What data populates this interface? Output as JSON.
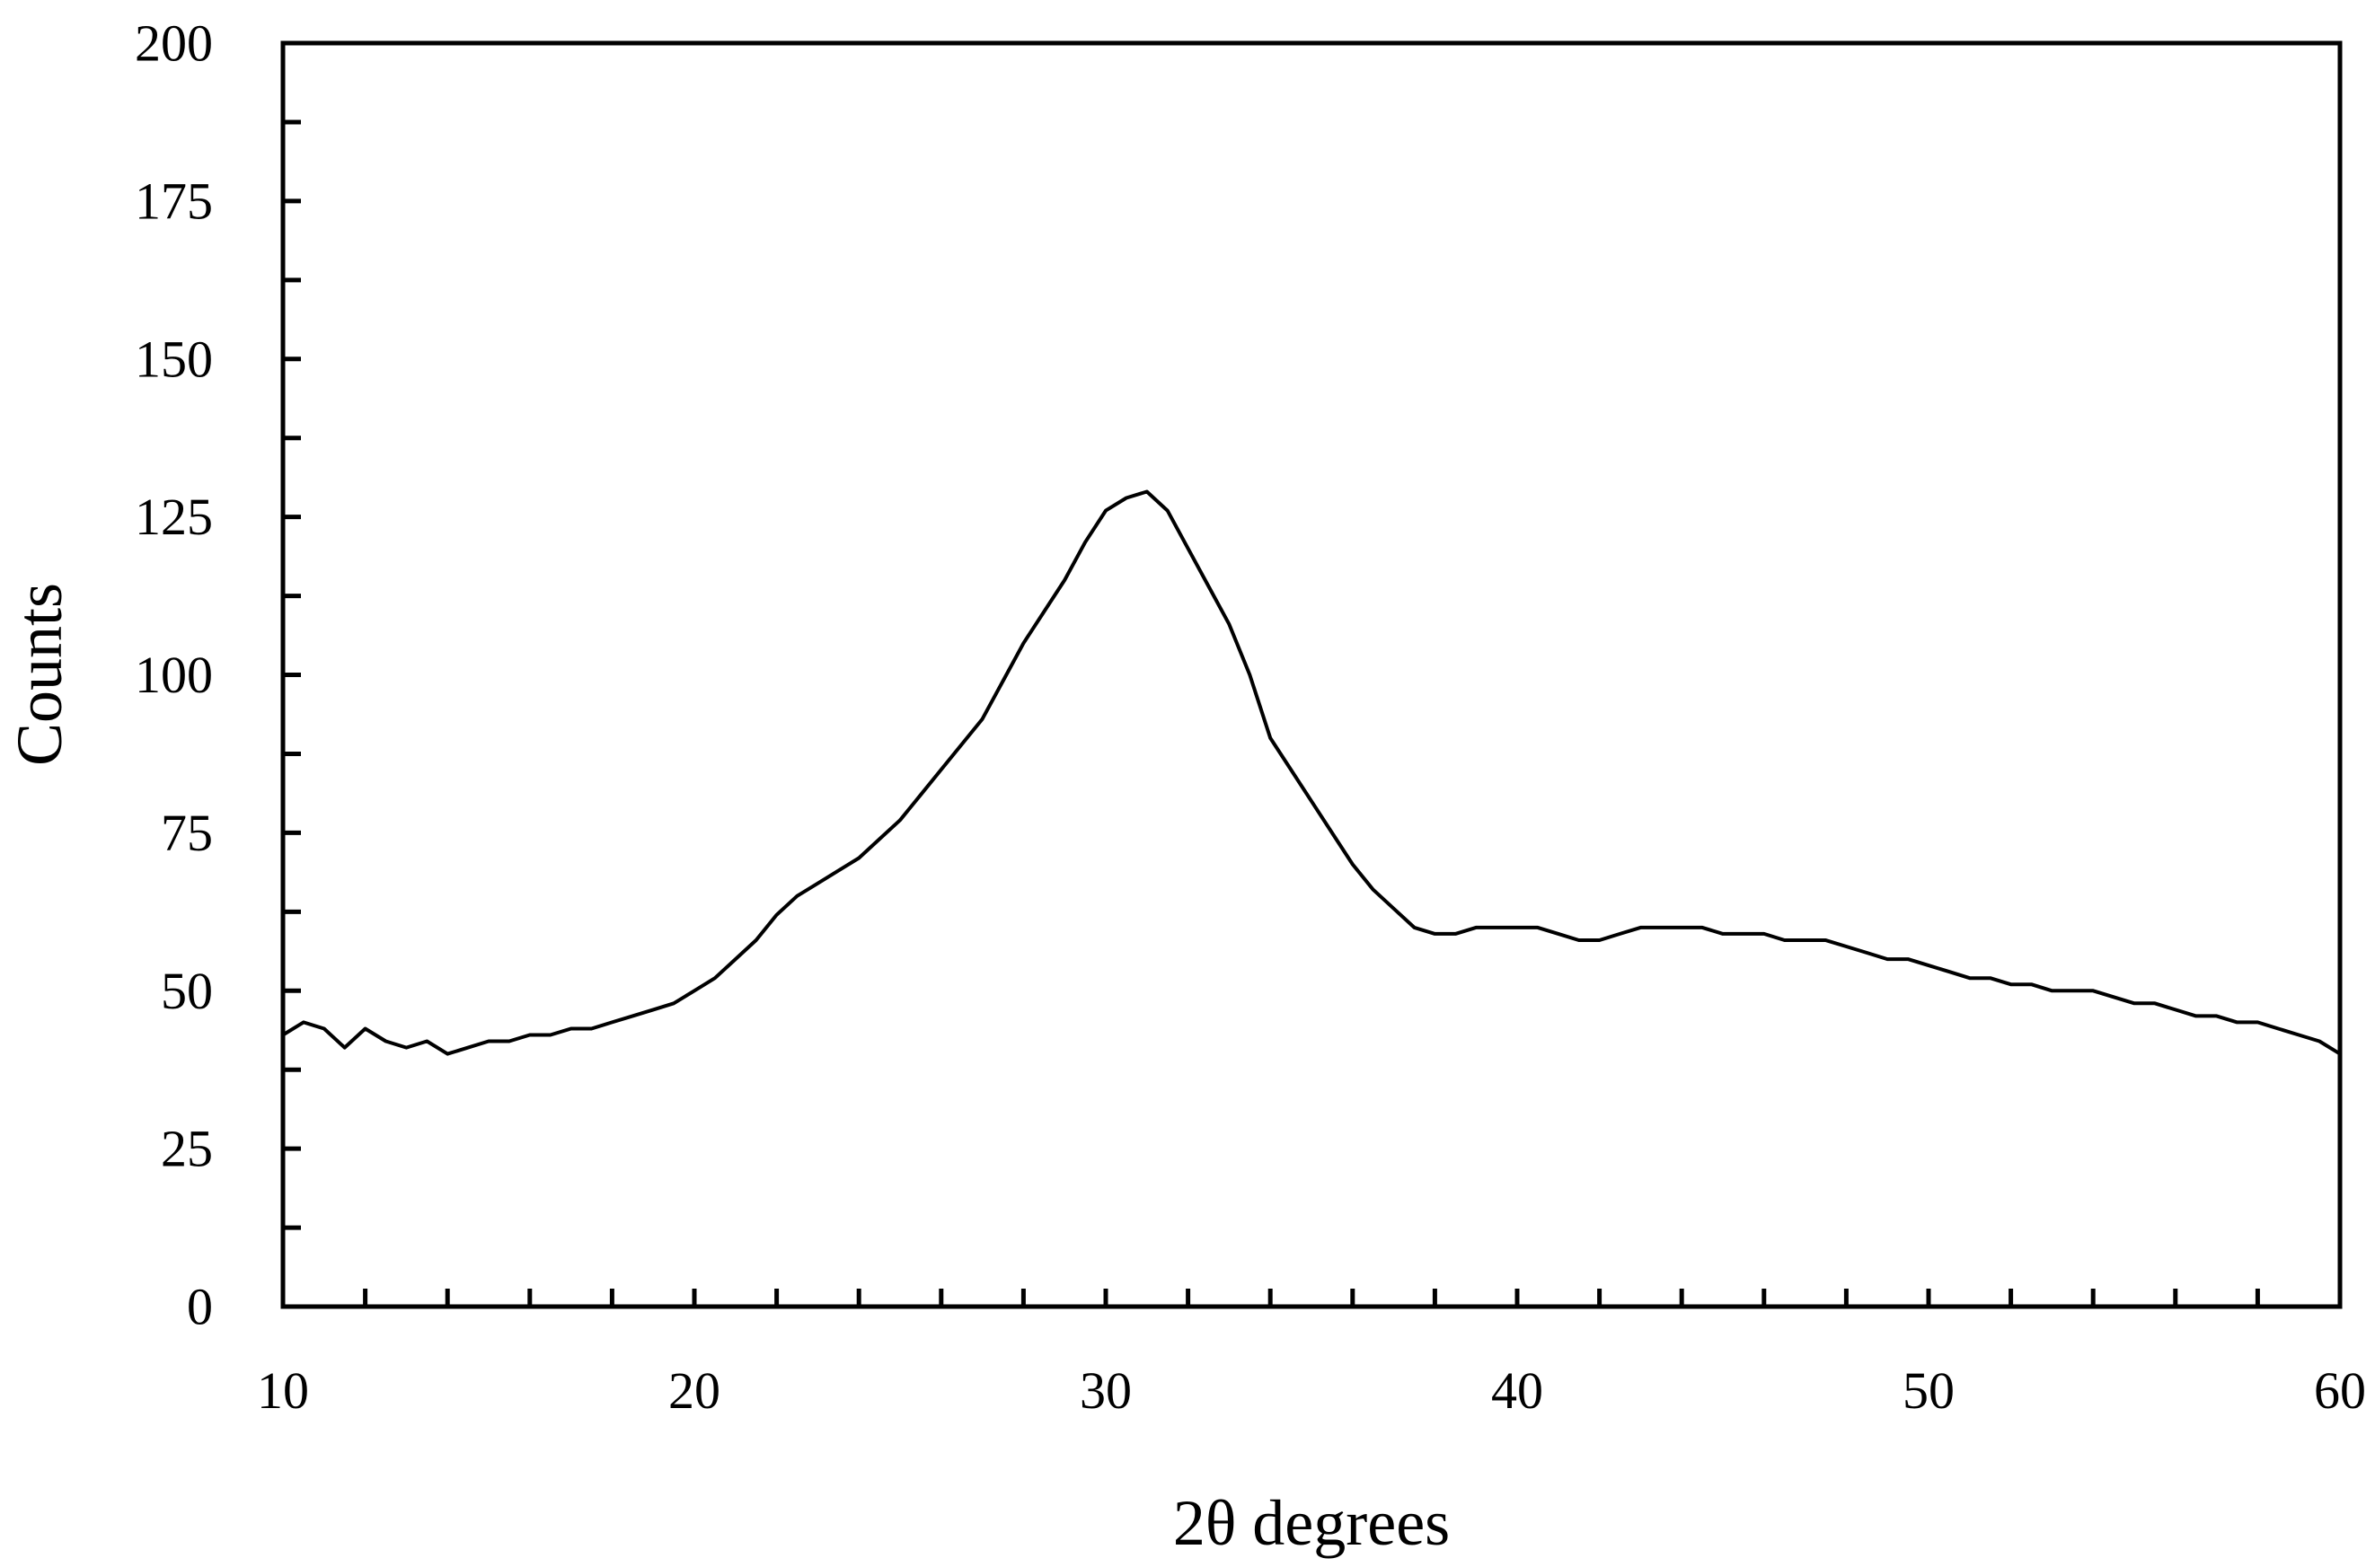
{
  "chart_data": {
    "type": "line",
    "title": "",
    "xlabel": "2θ degrees",
    "ylabel": "Counts",
    "xlim": [
      10,
      60
    ],
    "ylim": [
      0,
      200
    ],
    "x_ticks": [
      10,
      20,
      30,
      40,
      50,
      60
    ],
    "x_tick_labels": [
      "10",
      "20",
      "30",
      "40",
      "50",
      "60"
    ],
    "x_minor_tick_step": 2,
    "y_ticks": [
      0,
      25,
      50,
      75,
      100,
      125,
      150,
      175,
      200
    ],
    "y_tick_labels": [
      "0",
      "25",
      "50",
      "75",
      "100",
      "125",
      "150",
      "175",
      "200"
    ],
    "y_minor_tick_step": 12.5,
    "grid": false,
    "line_color": "#000000",
    "series": [
      {
        "x": [
          10.0,
          10.5,
          11.0,
          11.5,
          12.0,
          12.5,
          13.0,
          13.5,
          14.0,
          14.5,
          15.0,
          15.5,
          16.0,
          16.5,
          17.0,
          17.5,
          18.0,
          18.5,
          19.0,
          19.5,
          20.0,
          20.5,
          21.0,
          21.5,
          22.0,
          22.5,
          23.0,
          23.5,
          24.0,
          24.5,
          25.0,
          25.5,
          26.0,
          26.5,
          27.0,
          27.5,
          28.0,
          28.5,
          29.0,
          29.5,
          30.0,
          30.5,
          31.0,
          31.5,
          32.0,
          32.5,
          33.0,
          33.5,
          34.0,
          34.5,
          35.0,
          35.5,
          36.0,
          36.5,
          37.0,
          37.5,
          38.0,
          38.5,
          39.0,
          39.5,
          40.0,
          40.5,
          41.0,
          41.5,
          42.0,
          42.5,
          43.0,
          43.5,
          44.0,
          44.5,
          45.0,
          45.5,
          46.0,
          46.5,
          47.0,
          47.5,
          48.0,
          48.5,
          49.0,
          49.5,
          50.0,
          50.5,
          51.0,
          51.5,
          52.0,
          52.5,
          53.0,
          53.5,
          54.0,
          54.5,
          55.0,
          55.5,
          56.0,
          56.5,
          57.0,
          57.5,
          58.0,
          58.5,
          59.0,
          59.5,
          60.0
        ],
        "values": [
          43,
          45,
          44,
          41,
          44,
          42,
          41,
          42,
          40,
          41,
          42,
          42,
          43,
          43,
          44,
          44,
          45,
          46,
          47,
          48,
          50,
          52,
          55,
          58,
          62,
          65,
          67,
          69,
          71,
          74,
          77,
          81,
          85,
          89,
          93,
          99,
          105,
          110,
          115,
          121,
          126,
          128,
          129,
          126,
          120,
          114,
          108,
          100,
          90,
          85,
          80,
          75,
          70,
          66,
          63,
          60,
          59,
          59,
          60,
          60,
          60,
          60,
          59,
          58,
          58,
          59,
          60,
          60,
          60,
          60,
          59,
          59,
          59,
          58,
          58,
          58,
          57,
          56,
          55,
          55,
          54,
          53,
          52,
          52,
          51,
          51,
          50,
          50,
          50,
          49,
          48,
          48,
          47,
          46,
          46,
          45,
          45,
          44,
          43,
          42,
          40
        ]
      }
    ]
  }
}
